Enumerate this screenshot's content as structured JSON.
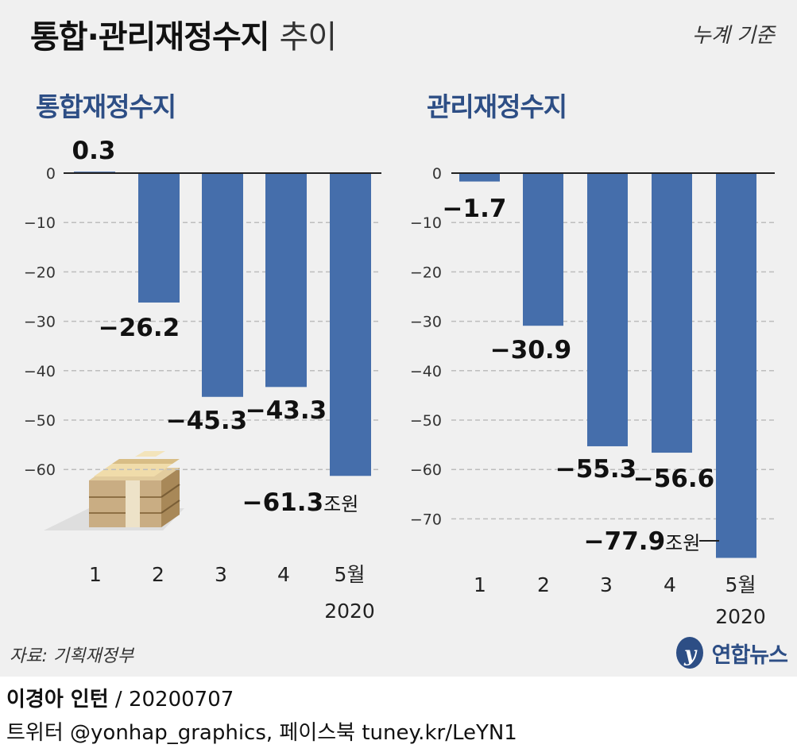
{
  "header": {
    "title": "통합·관리재정수지",
    "title_suffix": "추이",
    "basis": "누계 기준"
  },
  "footer": {
    "source": "자료: 기획재정부",
    "logo": "연합뉴스",
    "author": "이경아 인턴",
    "date_sep": "/",
    "date": "20200707",
    "sns": "트위터 @yonhap_graphics, 페이스북 tuney.kr/LeYN1"
  },
  "colors": {
    "bar": "#456eab",
    "title_blue": "#2d4e85",
    "panel_bg": "#f0f0f0"
  },
  "icons": [
    "money-stack-icon",
    "yonhap-logo-icon"
  ],
  "chart_data": [
    {
      "type": "bar",
      "title": "통합재정수지",
      "categories": [
        "1",
        "2",
        "3",
        "4",
        "5월"
      ],
      "year_label": "2020",
      "values": [
        0.3,
        -26.2,
        -45.3,
        -43.3,
        -61.3
      ],
      "value_labels": [
        "0.3",
        "−26.2",
        "−45.3",
        "−43.3",
        "−61.3"
      ],
      "unit": "조원",
      "yticks": [
        0,
        -10,
        -20,
        -30,
        -40,
        -50,
        -60
      ],
      "ytick_labels": [
        "0",
        "−10",
        "−20",
        "−30",
        "−40",
        "−50",
        "−60"
      ],
      "ylim": [
        -68,
        5
      ],
      "grid": true
    },
    {
      "type": "bar",
      "title": "관리재정수지",
      "categories": [
        "1",
        "2",
        "3",
        "4",
        "5월"
      ],
      "year_label": "2020",
      "values": [
        -1.7,
        -30.9,
        -55.3,
        -56.6,
        -77.9
      ],
      "value_labels": [
        "−1.7",
        "−30.9",
        "−55.3",
        "−56.6",
        "−77.9"
      ],
      "unit": "조원",
      "yticks": [
        0,
        -10,
        -20,
        -30,
        -40,
        -50,
        -60,
        -70
      ],
      "ytick_labels": [
        "0",
        "−10",
        "−20",
        "−30",
        "−40",
        "−50",
        "−60",
        "−70"
      ],
      "ylim": [
        -78,
        5
      ],
      "grid": true
    }
  ]
}
